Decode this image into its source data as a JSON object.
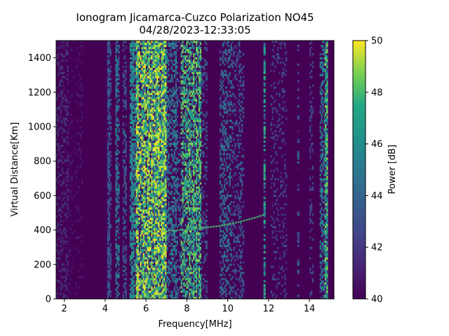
{
  "chart_data": {
    "type": "heatmap",
    "title": "Ionogram Jicamarca-Cuzco Polarization NO45",
    "subtitle": "04/28/2023-12:33:05",
    "xlabel": "Frequency[MHz]",
    "ylabel": "Virtual Distance[Km]",
    "xlim": [
      1.6,
      15.2
    ],
    "ylim": [
      0,
      1500
    ],
    "x_ticks": [
      2,
      4,
      6,
      8,
      10,
      12,
      14
    ],
    "y_ticks": [
      0,
      200,
      400,
      600,
      800,
      1000,
      1200,
      1400
    ],
    "colorbar": {
      "label": "Power [dB]",
      "range": [
        40,
        50
      ],
      "ticks": [
        40,
        42,
        44,
        46,
        48,
        50
      ],
      "colormap": "viridis"
    },
    "background_db": 40,
    "bands": [
      {
        "x_start": 1.6,
        "x_end": 2.2,
        "level_db": 42,
        "density": 0.35
      },
      {
        "x_start": 2.2,
        "x_end": 2.9,
        "level_db": 41,
        "density": 0.15
      },
      {
        "x_start": 4.1,
        "x_end": 4.3,
        "level_db": 44,
        "density": 0.6
      },
      {
        "x_start": 4.5,
        "x_end": 4.7,
        "level_db": 46,
        "density": 0.65
      },
      {
        "x_start": 4.85,
        "x_end": 5.05,
        "level_db": 44,
        "density": 0.55
      },
      {
        "x_start": 5.2,
        "x_end": 5.5,
        "level_db": 47,
        "density": 0.7
      },
      {
        "x_start": 5.5,
        "x_end": 7.0,
        "level_db": 50,
        "density": 0.92
      },
      {
        "x_start": 7.0,
        "x_end": 7.5,
        "level_db": 46,
        "density": 0.55
      },
      {
        "x_start": 7.5,
        "x_end": 7.7,
        "level_db": 45,
        "density": 0.3
      },
      {
        "x_start": 7.7,
        "x_end": 8.7,
        "level_db": 49,
        "density": 0.75
      },
      {
        "x_start": 8.7,
        "x_end": 9.0,
        "level_db": 44,
        "density": 0.35
      },
      {
        "x_start": 9.6,
        "x_end": 10.2,
        "level_db": 45,
        "density": 0.45
      },
      {
        "x_start": 10.2,
        "x_end": 10.8,
        "level_db": 44,
        "density": 0.35
      },
      {
        "x_start": 11.75,
        "x_end": 11.85,
        "level_db": 48,
        "density": 0.85
      },
      {
        "x_start": 12.1,
        "x_end": 12.9,
        "level_db": 43,
        "density": 0.2
      },
      {
        "x_start": 13.4,
        "x_end": 13.5,
        "level_db": 44,
        "density": 0.5
      },
      {
        "x_start": 14.0,
        "x_end": 14.2,
        "level_db": 43,
        "density": 0.35
      },
      {
        "x_start": 14.5,
        "x_end": 14.75,
        "level_db": 46,
        "density": 0.5
      },
      {
        "x_start": 14.75,
        "x_end": 14.9,
        "level_db": 49,
        "density": 0.85
      }
    ],
    "trace": [
      {
        "x": 6.8,
        "y": 395
      },
      {
        "x": 7.5,
        "y": 398
      },
      {
        "x": 8.5,
        "y": 408
      },
      {
        "x": 9.5,
        "y": 422
      },
      {
        "x": 10.5,
        "y": 445
      },
      {
        "x": 11.3,
        "y": 470
      },
      {
        "x": 11.8,
        "y": 490
      }
    ],
    "trace_db": 48
  }
}
